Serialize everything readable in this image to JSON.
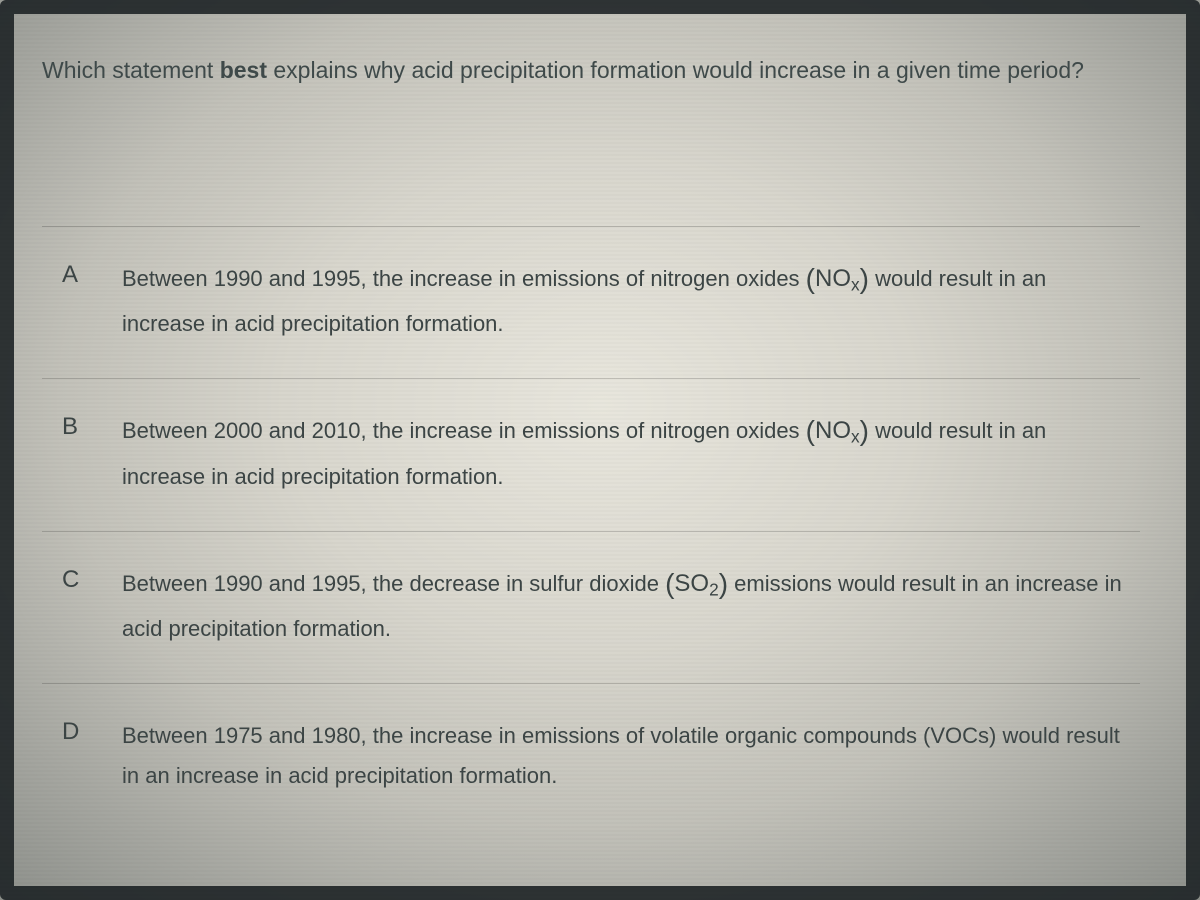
{
  "question": {
    "pre": "Which statement ",
    "bold": "best",
    "post": " explains why acid precipitation formation would increase in a given time period?"
  },
  "choices": [
    {
      "letter": "A",
      "text_before": "Between 1990 and 1995, the increase in emissions of nitrogen oxides ",
      "formula_base": "NO",
      "formula_sub": "x",
      "text_after": " would result in an increase in acid precipitation formation."
    },
    {
      "letter": "B",
      "text_before": "Between 2000 and 2010, the increase in emissions of nitrogen oxides ",
      "formula_base": "NO",
      "formula_sub": "x",
      "text_after": " would result in an increase in acid precipitation formation."
    },
    {
      "letter": "C",
      "text_before": "Between 1990 and 1995, the decrease in sulfur dioxide ",
      "formula_base": "SO",
      "formula_sub": "2",
      "text_after": " emissions would result in an increase in acid precipitation formation."
    },
    {
      "letter": "D",
      "text_before": "Between 1975 and 1980, the increase in emissions of volatile organic compounds (VOCs) would result in an increase in acid precipitation formation.",
      "formula_base": "",
      "formula_sub": "",
      "text_after": ""
    }
  ],
  "colors": {
    "text": "#3c4545",
    "divider": "rgba(0,0,0,0.16)"
  }
}
